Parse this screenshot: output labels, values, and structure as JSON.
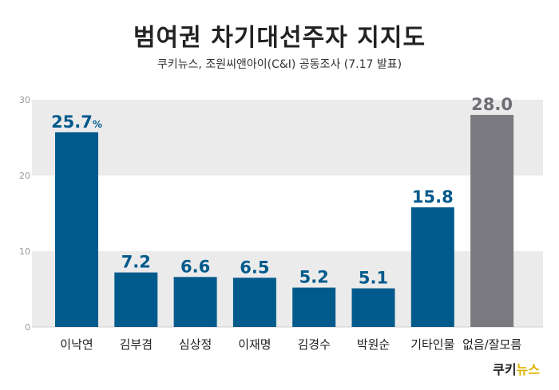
{
  "header": {
    "title": "범여권 차기대선주자 지지도",
    "subtitle": "쿠키뉴스, 조원씨앤아이(C&I) 공동조사 (7.17 발표)"
  },
  "footer": {
    "logo_main": "쿠키",
    "logo_accent": "뉴스"
  },
  "colors": {
    "bar_primary": "#005a8c",
    "bar_other": "#7a7a80",
    "band": "#ebebeb"
  },
  "chart_data": {
    "type": "bar",
    "categories": [
      "이낙연",
      "김부겸",
      "심상정",
      "이재명",
      "김경수",
      "박원순",
      "기타인물",
      "없음/잘모름"
    ],
    "values": [
      25.7,
      7.2,
      6.6,
      6.5,
      5.2,
      5.1,
      15.8,
      28.0
    ],
    "value_labels": [
      "25.7",
      "7.2",
      "6.6",
      "6.5",
      "5.2",
      "5.1",
      "15.8",
      "28.0"
    ],
    "first_label_unit": "%",
    "yticks": [
      "0",
      "10",
      "20",
      "30"
    ],
    "ylim": [
      0,
      30
    ],
    "bar_colors": [
      "#005a8c",
      "#005a8c",
      "#005a8c",
      "#005a8c",
      "#005a8c",
      "#005a8c",
      "#005a8c",
      "#7a7a80"
    ],
    "xlabel": "",
    "ylabel": ""
  }
}
